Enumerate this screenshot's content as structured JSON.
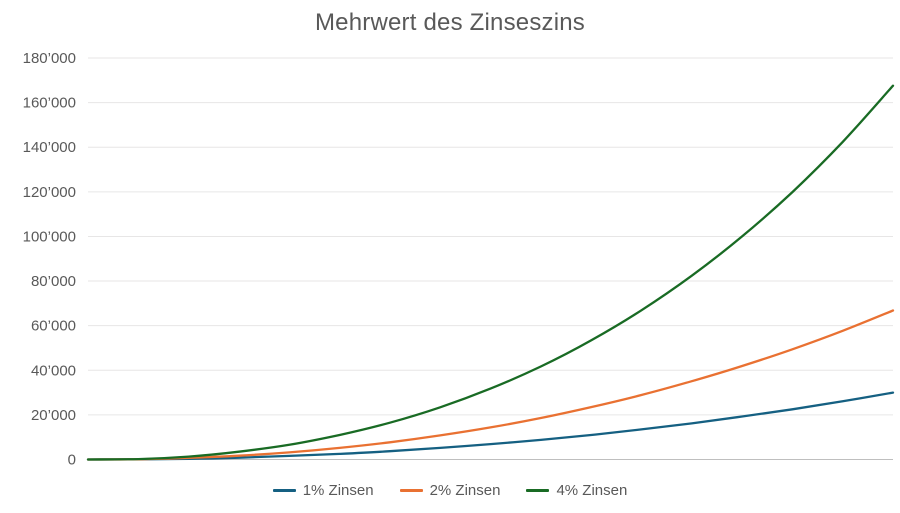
{
  "chart_data": {
    "type": "line",
    "title": "Mehrwert des Zinseszins",
    "x": [
      0,
      2,
      4,
      6,
      8,
      10,
      12,
      14,
      16,
      18,
      20,
      22,
      24,
      26,
      28,
      30,
      32
    ],
    "series": [
      {
        "name": "1% Zinsen",
        "color": "#156082",
        "values": [
          0,
          100,
          300,
          800,
          1600,
          2500,
          3700,
          5200,
          6900,
          8800,
          11000,
          13500,
          16200,
          19300,
          22500,
          26100,
          30000
        ]
      },
      {
        "name": "2% Zinsen",
        "color": "#E97132",
        "values": [
          0,
          100,
          700,
          1700,
          3200,
          5200,
          7700,
          10800,
          14400,
          18600,
          23500,
          28900,
          35100,
          41900,
          49400,
          57700,
          66800
        ]
      },
      {
        "name": "4% Zinsen",
        "color": "#196B24",
        "values": [
          0,
          200,
          1300,
          3500,
          6600,
          11000,
          16500,
          23400,
          31800,
          41700,
          53400,
          66900,
          82400,
          100000,
          119900,
          142400,
          167600
        ]
      }
    ],
    "ylim": [
      0,
      180000
    ],
    "ytick_step": 20000,
    "ytick_labels": [
      "0",
      "20’000",
      "40’000",
      "60’000",
      "80’000",
      "100’000",
      "120’000",
      "140’000",
      "160’000",
      "180’000"
    ],
    "x_tick_labels_visible": false,
    "grid": true,
    "legend_position": "bottom"
  },
  "styles": {
    "background": "#FFFFFF",
    "title_color": "#595959",
    "tick_label_color": "#595959",
    "grid_color": "#E7E6E6",
    "axis_line_color": "#BFBFBF",
    "legend_text_color": "#595959"
  }
}
